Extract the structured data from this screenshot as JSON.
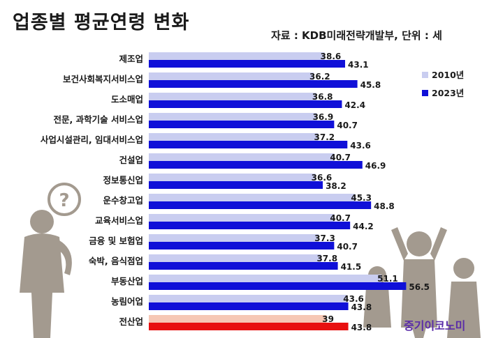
{
  "title": "업종별 평균연령 변화",
  "source_note": "자료 : KDB미래전략개발부, 단위 : 세",
  "watermark": "중기이코노미",
  "colors": {
    "series_2010": "#c9cdf0",
    "series_2023": "#1010d8",
    "total_2010": "#f6c7b5",
    "total_2023": "#e81010"
  },
  "chart_data": {
    "type": "bar",
    "orientation": "horizontal",
    "categories": [
      "제조업",
      "보건사회복지서비스업",
      "도소매업",
      "전문, 과학기술 서비스업",
      "사업시설관리, 임대서비스업",
      "건설업",
      "정보통신업",
      "운수창고업",
      "교육서비스업",
      "금융 및 보험업",
      "숙박, 음식점업",
      "부동산업",
      "농림어업",
      "전산업"
    ],
    "series": [
      {
        "name": "2010년",
        "values": [
          38.6,
          36.2,
          36.8,
          36.9,
          37.2,
          40.7,
          36.6,
          45.3,
          40.7,
          37.3,
          37.8,
          51.1,
          43.6,
          39
        ]
      },
      {
        "name": "2023년",
        "values": [
          43.1,
          45.8,
          42.4,
          40.7,
          43.6,
          46.9,
          38.2,
          48.8,
          44.2,
          40.7,
          41.5,
          56.5,
          43.8,
          43.8
        ]
      }
    ],
    "value_labels": [
      [
        "38.6",
        "43.1"
      ],
      [
        "36.2",
        "45.8"
      ],
      [
        "36.8",
        "42.4"
      ],
      [
        "36.9",
        "40.7"
      ],
      [
        "37.2",
        "43.6"
      ],
      [
        "40.7",
        "46.9"
      ],
      [
        "36.6",
        "38.2"
      ],
      [
        "45.3",
        "48.8"
      ],
      [
        "40.7",
        "44.2"
      ],
      [
        "37.3",
        "40.7"
      ],
      [
        "37.8",
        "41.5"
      ],
      [
        "51.1",
        "56.5"
      ],
      [
        "43.6",
        "43.8"
      ],
      [
        "39",
        "43.8"
      ]
    ],
    "highlight_category": "전산업",
    "legend_position": "right",
    "grid": false
  }
}
